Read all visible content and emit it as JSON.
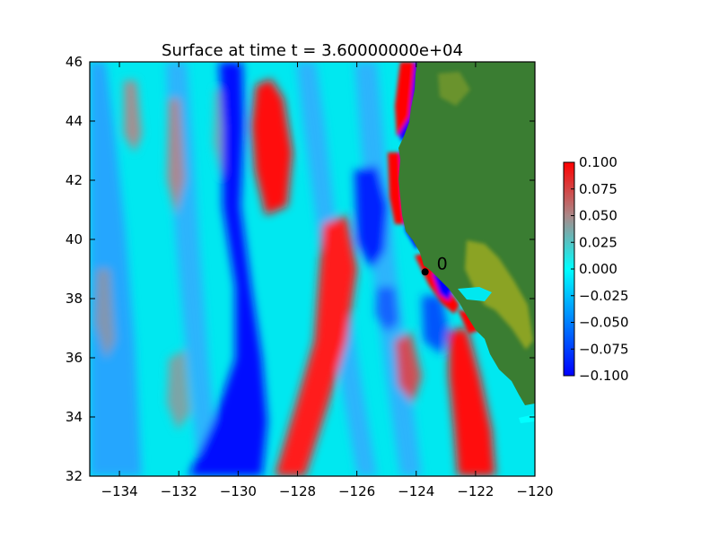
{
  "chart_data": {
    "type": "heatmap",
    "title": "Surface at time t = 3.60000000e+04",
    "xlabel": "",
    "ylabel": "",
    "xlim": [
      -135,
      -120
    ],
    "ylim": [
      32,
      46
    ],
    "x_ticks": [
      {
        "value": -134,
        "label": "−134"
      },
      {
        "value": -132,
        "label": "−132"
      },
      {
        "value": -130,
        "label": "−130"
      },
      {
        "value": -128,
        "label": "−128"
      },
      {
        "value": -126,
        "label": "−126"
      },
      {
        "value": -124,
        "label": "−124"
      },
      {
        "value": -122,
        "label": "−122"
      },
      {
        "value": -120,
        "label": "−120"
      }
    ],
    "y_ticks": [
      {
        "value": 32,
        "label": "32"
      },
      {
        "value": 34,
        "label": "34"
      },
      {
        "value": 36,
        "label": "36"
      },
      {
        "value": 38,
        "label": "38"
      },
      {
        "value": 40,
        "label": "40"
      },
      {
        "value": 42,
        "label": "42"
      },
      {
        "value": 44,
        "label": "44"
      },
      {
        "value": 46,
        "label": "46"
      }
    ],
    "colorbar": {
      "vmin": -0.1,
      "vmax": 0.1,
      "ticks": [
        {
          "value": 0.1,
          "label": "0.100"
        },
        {
          "value": 0.075,
          "label": "0.075"
        },
        {
          "value": 0.05,
          "label": "0.050"
        },
        {
          "value": 0.025,
          "label": "0.025"
        },
        {
          "value": 0.0,
          "label": "0.000"
        },
        {
          "value": -0.025,
          "label": "−0.025"
        },
        {
          "value": -0.05,
          "label": "−0.050"
        },
        {
          "value": -0.075,
          "label": "−0.075"
        },
        {
          "value": -0.1,
          "label": "−0.100"
        }
      ],
      "colors": [
        "#0000ff",
        "#00ffff",
        "#ff0000"
      ]
    },
    "land_color": "#3a7d32",
    "gauge": {
      "label": "0",
      "x": -123.7,
      "y": 38.9
    }
  }
}
